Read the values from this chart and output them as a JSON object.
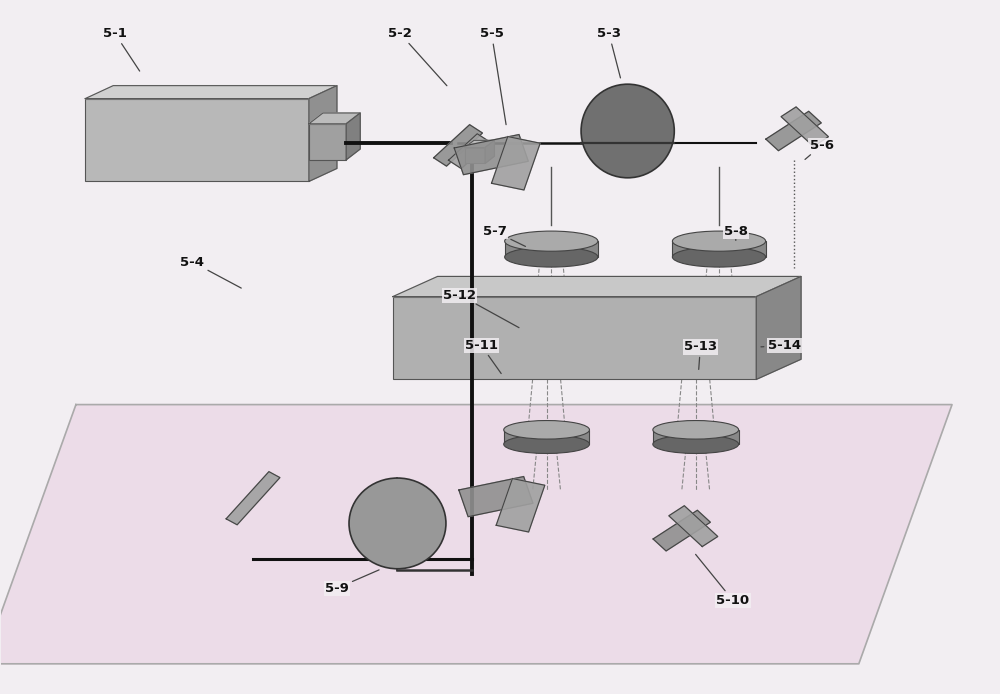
{
  "bg_color": "#f2eef2",
  "plate_color": "#ecdce8",
  "plate_border": "#aaaaaa",
  "device_gray": "#b0b0b0",
  "device_dark": "#787878",
  "device_light": "#d0d0d0",
  "device_mid": "#989898",
  "beam_color": "#111111",
  "dashed_color": "#888888",
  "label_color": "#111111",
  "label_fontsize": 9.5,
  "components": [
    "5-1",
    "5-2",
    "5-3",
    "5-4",
    "5-5",
    "5-6",
    "5-7",
    "5-8",
    "5-9",
    "5-10",
    "5-11",
    "5-12",
    "5-13",
    "5-14"
  ]
}
